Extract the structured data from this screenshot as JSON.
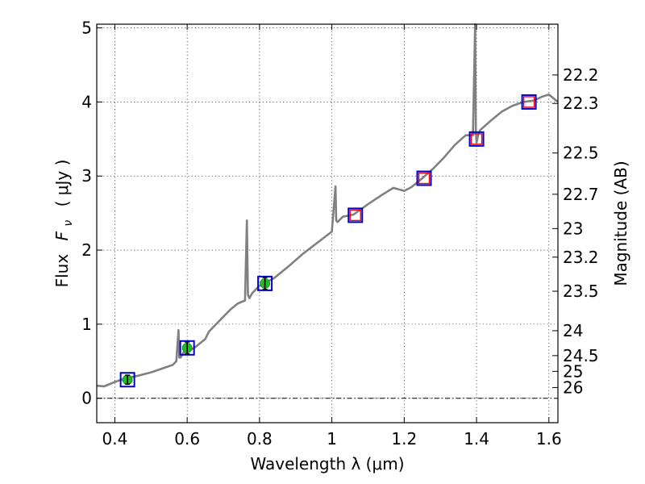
{
  "chart_data": {
    "type": "line",
    "title": "",
    "xlabel": "Wavelength  λ (μm)",
    "ylabel": "Flux  F_ν  ( μJy )",
    "ylabel_parts": {
      "prefix": "Flux",
      "symbol": "F",
      "subscript": "ν",
      "units": "( μJy )"
    },
    "y2label": "Magnitude (AB)",
    "xlim": [
      0.35,
      1.625
    ],
    "ylim": [
      -0.33,
      5.05
    ],
    "grid": true,
    "x_ticks": [
      0.4,
      0.6,
      0.8,
      1.0,
      1.2,
      1.4,
      1.6
    ],
    "x_tick_labels": [
      "0.4",
      "0.6",
      "0.8",
      "1",
      "1.2",
      "1.4",
      "1.6"
    ],
    "y_ticks": [
      0,
      1,
      2,
      3,
      4,
      5
    ],
    "y_tick_labels": [
      "0",
      "1",
      "2",
      "3",
      "4",
      "5"
    ],
    "mag_ticks": [
      {
        "flux": 0.1445,
        "label": "26"
      },
      {
        "flux": 0.3631,
        "label": "25"
      },
      {
        "flux": 0.5754,
        "label": "24.5"
      },
      {
        "flux": 0.912,
        "label": "24"
      },
      {
        "flux": 1.445,
        "label": "23.5"
      },
      {
        "flux": 1.905,
        "label": "23.2"
      },
      {
        "flux": 2.291,
        "label": "23"
      },
      {
        "flux": 2.754,
        "label": "22.7"
      },
      {
        "flux": 3.311,
        "label": "22.5"
      },
      {
        "flux": 3.98,
        "label": "22.3"
      },
      {
        "flux": 4.365,
        "label": "22.2"
      }
    ],
    "series": [
      {
        "name": "model spectrum",
        "color": "#808080",
        "x": [
          0.35,
          0.37,
          0.4,
          0.43,
          0.46,
          0.5,
          0.53,
          0.56,
          0.57,
          0.576,
          0.578,
          0.582,
          0.59,
          0.62,
          0.65,
          0.66,
          0.68,
          0.7,
          0.72,
          0.74,
          0.76,
          0.765,
          0.768,
          0.772,
          0.78,
          0.8,
          0.84,
          0.88,
          0.92,
          0.96,
          1.0,
          1.01,
          1.012,
          1.016,
          1.03,
          1.06,
          1.1,
          1.14,
          1.17,
          1.2,
          1.22,
          1.25,
          1.28,
          1.31,
          1.34,
          1.37,
          1.39,
          1.396,
          1.398,
          1.4,
          1.404,
          1.41,
          1.44,
          1.47,
          1.5,
          1.53,
          1.56,
          1.58,
          1.6,
          1.625
        ],
        "y": [
          0.17,
          0.16,
          0.22,
          0.27,
          0.3,
          0.35,
          0.4,
          0.45,
          0.5,
          0.92,
          0.55,
          0.55,
          0.62,
          0.68,
          0.8,
          0.9,
          1.0,
          1.1,
          1.2,
          1.28,
          1.32,
          2.4,
          1.4,
          1.35,
          1.42,
          1.52,
          1.62,
          1.78,
          1.95,
          2.1,
          2.25,
          2.86,
          2.4,
          2.38,
          2.45,
          2.48,
          2.62,
          2.75,
          2.84,
          2.8,
          2.85,
          2.97,
          3.1,
          3.25,
          3.42,
          3.55,
          3.55,
          5.05,
          3.6,
          3.45,
          3.55,
          3.62,
          3.75,
          3.87,
          3.95,
          4.0,
          4.02,
          4.07,
          4.1,
          4.0
        ]
      }
    ],
    "observed_points": [
      {
        "x": 0.435,
        "y": 0.25,
        "err": 0.06
      },
      {
        "x": 0.6,
        "y": 0.68,
        "err": 0.08
      },
      {
        "x": 0.815,
        "y": 1.55,
        "err": 0.08
      }
    ],
    "model_photometry": [
      {
        "x": 0.435,
        "y": 0.25
      },
      {
        "x": 0.6,
        "y": 0.68
      },
      {
        "x": 0.815,
        "y": 1.55
      },
      {
        "x": 1.065,
        "y": 2.47
      },
      {
        "x": 1.255,
        "y": 2.97
      },
      {
        "x": 1.4,
        "y": 3.5
      },
      {
        "x": 1.545,
        "y": 4.0
      }
    ],
    "upper_points": [
      {
        "x": 1.065,
        "y": 2.47
      },
      {
        "x": 1.255,
        "y": 2.97
      },
      {
        "x": 1.4,
        "y": 3.5
      },
      {
        "x": 1.545,
        "y": 4.0
      }
    ],
    "colors": {
      "spectrum": "#808080",
      "observed": "#22bb22",
      "model_box": "#0000cc",
      "upper": "#ff0000",
      "zero_line": "#000000"
    }
  }
}
